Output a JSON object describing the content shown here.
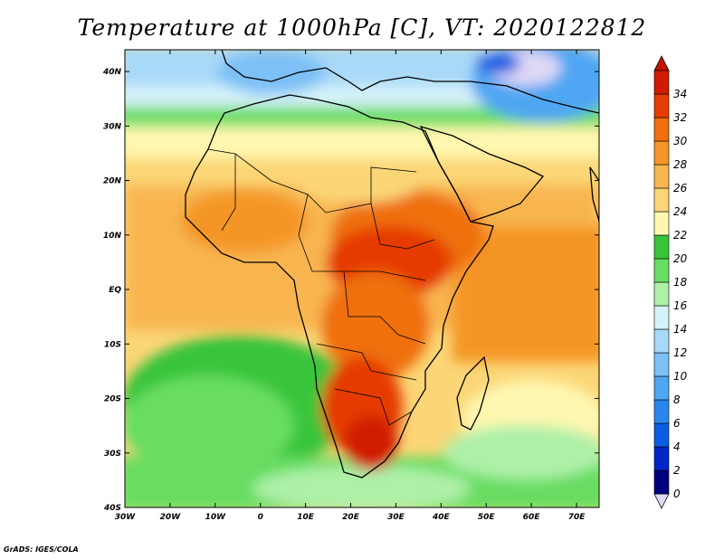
{
  "title": "Temperature at 1000hPa [C], VT: 2020122812",
  "credit": "GrADS: IGES/COLA",
  "map": {
    "lon_range": [
      -30,
      75
    ],
    "lat_range": [
      -40,
      44
    ],
    "lat_labels": [
      "40N",
      "30N",
      "20N",
      "10N",
      "EQ",
      "10S",
      "20S",
      "30S",
      "40S"
    ],
    "lon_labels": [
      "30W",
      "20W",
      "10W",
      "0",
      "10E",
      "20E",
      "30E",
      "40E",
      "50E",
      "60E",
      "70E"
    ]
  },
  "colorbar": {
    "levels": [
      0,
      2,
      4,
      6,
      8,
      10,
      12,
      14,
      16,
      18,
      20,
      22,
      24,
      26,
      28,
      30,
      32,
      34
    ],
    "colors": [
      "#00007f",
      "#0026c8",
      "#0d5de2",
      "#2a86ee",
      "#4fa6f3",
      "#7cc0f6",
      "#a9d9f8",
      "#d6f2f9",
      "#aef0a8",
      "#68dd62",
      "#38c43a",
      "#fff7b0",
      "#fbd677",
      "#f8b550",
      "#f49628",
      "#ef6f0c",
      "#e53b04",
      "#d01b00"
    ],
    "under_color": "#dfd8f5",
    "over_color": "#c41400"
  }
}
